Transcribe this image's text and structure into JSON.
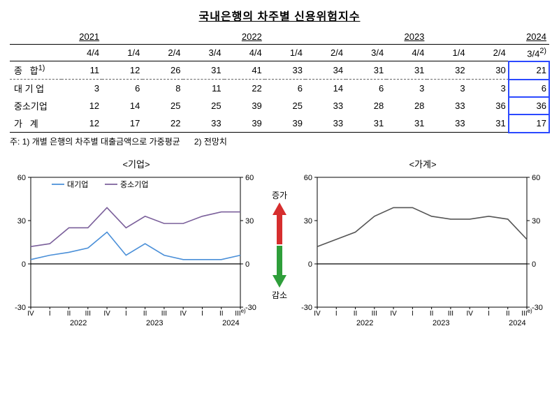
{
  "title": "국내은행의 차주별 신용위험지수",
  "table": {
    "year_groups": [
      {
        "label": "2021",
        "span": 1,
        "cols": [
          "4/4"
        ]
      },
      {
        "label": "2022",
        "span": 4,
        "cols": [
          "1/4",
          "2/4",
          "3/4",
          "4/4"
        ]
      },
      {
        "label": "2023",
        "span": 4,
        "cols": [
          "1/4",
          "2/4",
          "3/4",
          "4/4"
        ]
      },
      {
        "label": "2024",
        "span": 3,
        "cols": [
          "1/4",
          "2/4",
          "3/4"
        ],
        "last_sup": "2)"
      }
    ],
    "rows": [
      {
        "label": "종   합",
        "sup": "1)",
        "vals": [
          11,
          12,
          26,
          31,
          41,
          33,
          34,
          31,
          31,
          32,
          30,
          21
        ]
      },
      {
        "label": "대 기 업",
        "vals": [
          3,
          6,
          8,
          11,
          22,
          6,
          14,
          6,
          3,
          3,
          3,
          6
        ]
      },
      {
        "label": "중소기업",
        "vals": [
          12,
          14,
          25,
          25,
          39,
          25,
          33,
          28,
          28,
          33,
          36,
          36
        ]
      },
      {
        "label": "가   계",
        "vals": [
          12,
          17,
          22,
          33,
          39,
          39,
          33,
          31,
          31,
          33,
          31,
          17
        ]
      }
    ],
    "highlight_last_col": true
  },
  "notes": {
    "n1_label": "주: 1)",
    "n1": "개별 은행의 차주별 대출금액으로 가중평균",
    "n2_label": "2)",
    "n2": "전망치"
  },
  "mid_labels": {
    "up": "증가",
    "down": "감소"
  },
  "charts": {
    "xcats": [
      "IV",
      "I",
      "II",
      "III",
      "IV",
      "I",
      "II",
      "III",
      "IV",
      "I",
      "II",
      "III"
    ],
    "xcat_last_sup": "e)",
    "xyears": [
      "2022",
      "2023",
      "2024"
    ],
    "ylim": [
      -30,
      60
    ],
    "yticks": [
      -30,
      0,
      30,
      60
    ],
    "axis_color": "#000",
    "grid_color": "#ccc",
    "corp": {
      "title": "<기업>",
      "legend": [
        {
          "name": "대기업",
          "color": "#4a8fd8"
        },
        {
          "name": "중소기업",
          "color": "#7b609b"
        }
      ],
      "series": {
        "large": [
          3,
          6,
          8,
          11,
          22,
          6,
          14,
          6,
          3,
          3,
          3,
          6
        ],
        "sme": [
          12,
          14,
          25,
          25,
          39,
          25,
          33,
          28,
          28,
          33,
          36,
          36
        ]
      }
    },
    "house": {
      "title": "<가계>",
      "color": "#555",
      "series": [
        12,
        17,
        22,
        33,
        39,
        39,
        33,
        31,
        31,
        33,
        31,
        17
      ]
    }
  }
}
